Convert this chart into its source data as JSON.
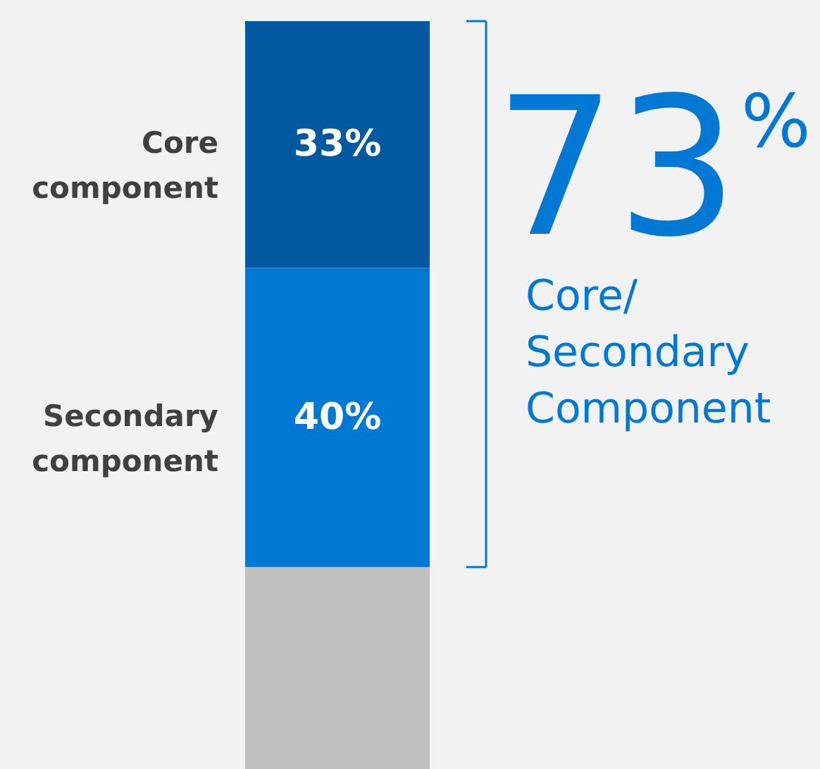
{
  "chart_data": {
    "type": "bar",
    "stacked": true,
    "categories": [
      null
    ],
    "ylim": [
      0,
      100
    ],
    "tick_labels": false,
    "legend": false,
    "series": [
      {
        "color": "#c0c0c0",
        "values": [
          27
        ],
        "value_labels": [
          null
        ]
      },
      {
        "name": "Secondary component",
        "color": "#0078d4",
        "values": [
          40
        ],
        "value_labels": [
          "40%"
        ]
      },
      {
        "name": "Core component",
        "color": "#0059a1",
        "values": [
          33
        ],
        "value_labels": [
          "33%"
        ]
      }
    ],
    "annotations": [
      "73%",
      "Core/\nSecondary\nComponent"
    ]
  }
}
